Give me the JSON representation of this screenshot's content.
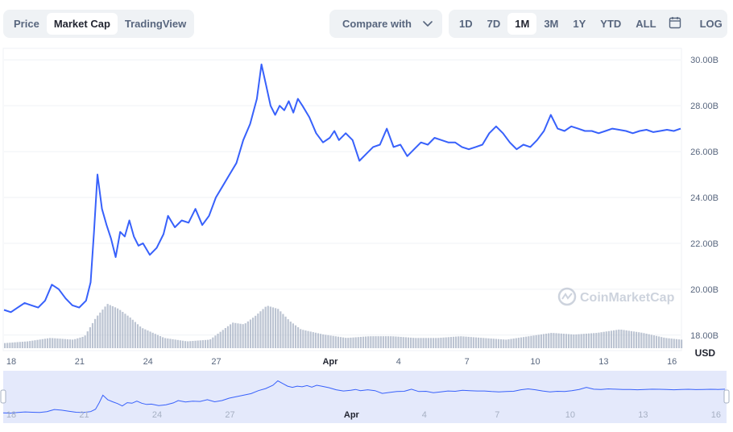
{
  "toolbar": {
    "chart_types": [
      {
        "label": "Price",
        "active": false
      },
      {
        "label": "Market Cap",
        "active": true
      },
      {
        "label": "TradingView",
        "active": false
      }
    ],
    "compare_label": "Compare with",
    "ranges": [
      {
        "label": "1D",
        "active": false
      },
      {
        "label": "7D",
        "active": false
      },
      {
        "label": "1M",
        "active": true
      },
      {
        "label": "3M",
        "active": false
      },
      {
        "label": "1Y",
        "active": false
      },
      {
        "label": "YTD",
        "active": false
      },
      {
        "label": "ALL",
        "active": false
      }
    ],
    "log_label": "LOG",
    "icons": [
      "chevron-down-icon",
      "calendar-icon"
    ]
  },
  "watermark": "CoinMarketCap",
  "colors": {
    "line": "#3861fb",
    "volume": "#a6b0c3",
    "navigator_fill": "#e4e9fb",
    "grid": "#eff2f5",
    "text": "#58667e"
  },
  "chart_data": {
    "type": "line",
    "yunit": "USD",
    "ylim": [
      17.5,
      30.5
    ],
    "ytick_labels": [
      "30.00B",
      "28.00B",
      "26.00B",
      "24.00B",
      "22.00B",
      "20.00B",
      "18.00B"
    ],
    "ytick_values": [
      30,
      28,
      26,
      24,
      22,
      20,
      18
    ],
    "xlim": [
      0,
      29.7
    ],
    "xtick_labels": [
      "18",
      "21",
      "24",
      "27",
      "Apr",
      "4",
      "7",
      "10",
      "13",
      "16"
    ],
    "xtick_values": [
      0,
      3,
      6,
      9,
      14,
      17,
      20,
      23,
      26,
      29
    ],
    "series": [
      {
        "x": [
          0,
          0.3,
          0.6,
          0.9,
          1.2,
          1.5,
          1.8,
          2.1,
          2.4,
          2.7,
          3.0,
          3.3,
          3.6,
          3.8,
          3.95,
          4.1,
          4.3,
          4.5,
          4.7,
          4.9,
          5.1,
          5.3,
          5.5,
          5.7,
          5.9,
          6.1,
          6.4,
          6.7,
          7.0,
          7.2,
          7.5,
          7.8,
          8.1,
          8.4,
          8.7,
          9.0,
          9.3,
          9.6,
          9.9,
          10.2,
          10.5,
          10.8,
          11.1,
          11.3,
          11.5,
          11.7,
          11.9,
          12.1,
          12.3,
          12.5,
          12.7,
          12.9,
          13.1,
          13.4,
          13.7,
          14.0,
          14.3,
          14.5,
          14.7,
          15.0,
          15.3,
          15.6,
          15.9,
          16.2,
          16.5,
          16.8,
          17.1,
          17.4,
          17.7,
          18.0,
          18.3,
          18.6,
          18.9,
          19.2,
          19.5,
          19.8,
          20.1,
          20.4,
          20.7,
          21.0,
          21.3,
          21.6,
          21.9,
          22.2,
          22.5,
          22.8,
          23.1,
          23.4,
          23.7,
          24.0,
          24.3,
          24.6,
          24.9,
          25.2,
          25.5,
          25.8,
          26.1,
          26.4,
          26.7,
          27.0,
          27.3,
          27.6,
          27.9,
          28.2,
          28.5,
          28.8,
          29.1,
          29.4,
          29.7
        ],
        "y": [
          19.1,
          19.0,
          19.2,
          19.4,
          19.3,
          19.2,
          19.5,
          20.2,
          20.0,
          19.6,
          19.3,
          19.2,
          19.5,
          20.3,
          22.5,
          25.0,
          23.5,
          22.8,
          22.2,
          21.4,
          22.5,
          22.3,
          23.0,
          22.3,
          21.9,
          22.0,
          21.5,
          21.8,
          22.4,
          23.2,
          22.7,
          23.0,
          22.9,
          23.5,
          22.8,
          23.2,
          24.0,
          24.5,
          25.0,
          25.5,
          26.5,
          27.2,
          28.3,
          29.8,
          28.9,
          28.0,
          27.6,
          28.0,
          27.8,
          28.2,
          27.7,
          28.3,
          28.0,
          27.5,
          26.8,
          26.4,
          26.6,
          26.9,
          26.5,
          26.8,
          26.5,
          25.6,
          25.9,
          26.2,
          26.3,
          27.0,
          26.2,
          26.3,
          25.8,
          26.1,
          26.4,
          26.3,
          26.6,
          26.5,
          26.4,
          26.4,
          26.2,
          26.1,
          26.2,
          26.3,
          26.8,
          27.1,
          26.8,
          26.4,
          26.1,
          26.3,
          26.2,
          26.5,
          26.9,
          27.6,
          27.0,
          26.9,
          27.1,
          27.0,
          26.9,
          26.9,
          26.8,
          26.9,
          27.0,
          26.95,
          26.9,
          26.8,
          26.9,
          26.95,
          26.85,
          26.9,
          26.95,
          26.9,
          27.0
        ]
      }
    ],
    "volume": {
      "x": [
        0,
        1,
        2,
        3,
        3.5,
        4,
        4.5,
        5,
        5.5,
        6,
        7,
        8,
        9,
        9.5,
        10,
        10.5,
        11,
        11.5,
        12,
        12.5,
        13,
        14,
        15,
        16,
        17,
        18,
        19,
        20,
        21,
        22,
        23,
        24,
        25,
        26,
        27,
        28,
        29,
        29.7
      ],
      "v": [
        0.3,
        0.4,
        0.6,
        0.5,
        0.7,
        1.8,
        2.6,
        2.3,
        1.8,
        1.2,
        0.6,
        0.4,
        0.5,
        1.0,
        1.5,
        1.4,
        1.9,
        2.5,
        2.3,
        1.6,
        1.1,
        0.8,
        0.6,
        0.7,
        0.7,
        0.6,
        0.6,
        0.7,
        0.6,
        0.5,
        0.7,
        0.9,
        0.8,
        0.9,
        1.1,
        0.9,
        0.6,
        0.5
      ]
    },
    "navigator_xtick_labels": [
      "18",
      "21",
      "24",
      "27",
      "Apr",
      "4",
      "7",
      "10",
      "13",
      "16"
    ]
  }
}
